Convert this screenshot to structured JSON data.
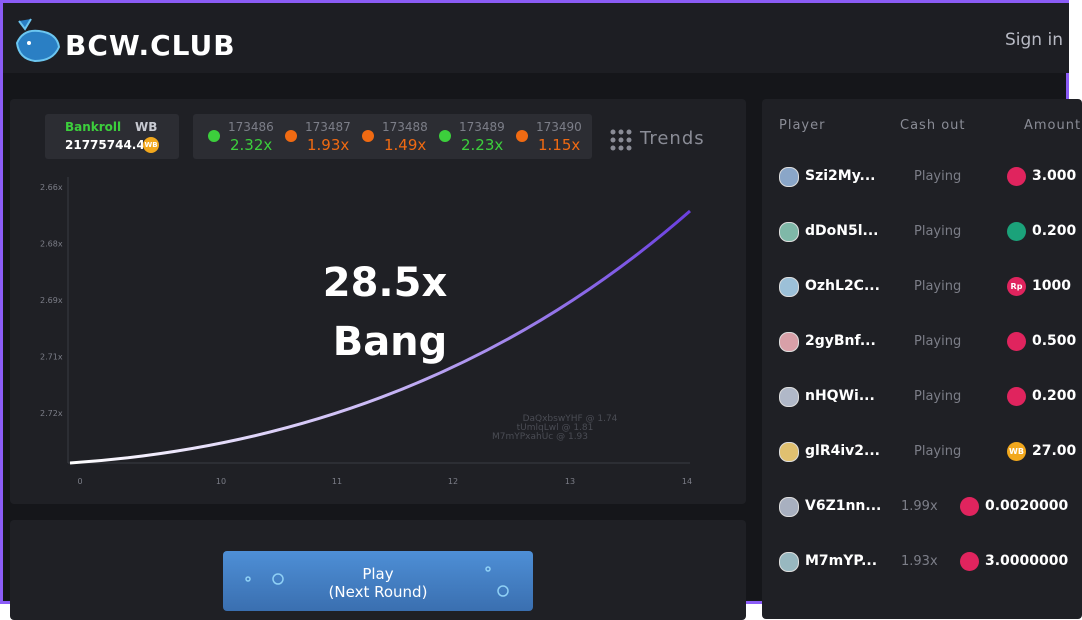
{
  "header": {
    "logo": "BCW.CLUB",
    "sign_in": "Sign in"
  },
  "bankroll": {
    "label": "Bankroll",
    "unit": "WB",
    "amount": "21775744.4",
    "coin": "WB"
  },
  "history": [
    {
      "round": "173486",
      "multiplier": "2.32x",
      "color": "#3ccf3c"
    },
    {
      "round": "173487",
      "multiplier": "1.93x",
      "color": "#f06a12"
    },
    {
      "round": "173488",
      "multiplier": "1.49x",
      "color": "#f06a12"
    },
    {
      "round": "173489",
      "multiplier": "2.23x",
      "color": "#3ccf3c"
    },
    {
      "round": "173490",
      "multiplier": "1.15x",
      "color": "#f06a12"
    }
  ],
  "trends": "Trends",
  "graph": {
    "multiplier": "28.5x",
    "status": "Bang",
    "y_labels": [
      "2.66x",
      "2.68x",
      "2.69x",
      "2.71x",
      "2.72x"
    ],
    "x_labels": [
      "0",
      "10",
      "11",
      "12",
      "13",
      "14"
    ],
    "cashouts": [
      "DaQxbswYHF @ 1.74",
      "tUmlqLwl @ 1.81",
      "M7mYPxahUc @ 1.93"
    ]
  },
  "button": {
    "label": "Play",
    "sub": "(Next Round)"
  },
  "players": {
    "headers": [
      "Player",
      "Cash out",
      "Amount"
    ],
    "rows": [
      {
        "name": "Szi2My...",
        "cash_out": "Playing",
        "amount": "3.000",
        "icon_color": "#e0245e",
        "avatar": "#8aa6c8"
      },
      {
        "name": "dDoN5l...",
        "cash_out": "Playing",
        "amount": "0.200",
        "icon_color": "#1ba27a",
        "avatar": "#7fb8a8"
      },
      {
        "name": "OzhL2C...",
        "cash_out": "Playing",
        "amount": "1000",
        "icon_color": "#e0245e",
        "icon": "Rp",
        "avatar": "#9cc0d8"
      },
      {
        "name": "2gyBnf...",
        "cash_out": "Playing",
        "amount": "0.500",
        "icon_color": "#e0245e",
        "avatar": "#d8a0a8"
      },
      {
        "name": "nHQWi...",
        "cash_out": "Playing",
        "amount": "0.200",
        "icon_color": "#e0245e",
        "avatar": "#b0b8c8"
      },
      {
        "name": "glR4iv2...",
        "cash_out": "Playing",
        "amount": "27.00",
        "icon_color": "#f2a81d",
        "icon": "WB",
        "avatar": "#e0c070"
      },
      {
        "name": "V6Z1nn...",
        "cash_out": "1.99x",
        "amount": "0.0020000",
        "icon_color": "#e0245e",
        "avatar": "#a8b0c0"
      },
      {
        "name": "M7mYP...",
        "cash_out": "1.93x",
        "amount": "3.0000000",
        "icon_color": "#e0245e",
        "avatar": "#98b8c0"
      }
    ]
  }
}
